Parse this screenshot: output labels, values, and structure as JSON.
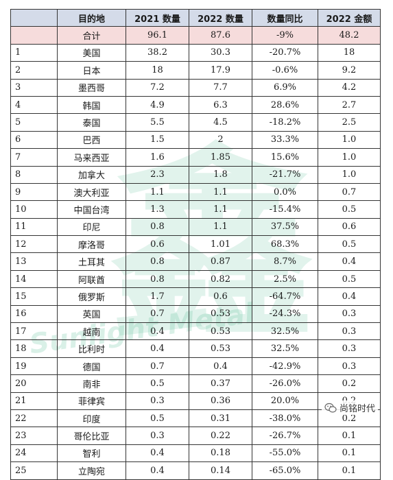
{
  "table": {
    "headers": [
      "",
      "目的地",
      "2021 数量",
      "2022 数量",
      "数量同比",
      "2022 金额"
    ],
    "total": [
      "",
      "合计",
      "96.1",
      "87.6",
      "-9%",
      "48.2"
    ],
    "rows": [
      [
        "1",
        "美国",
        "38.2",
        "30.3",
        "-20.7%",
        "18"
      ],
      [
        "2",
        "日本",
        "18",
        "17.9",
        "-0.6%",
        "9.2"
      ],
      [
        "3",
        "墨西哥",
        "7.2",
        "7.7",
        "6.9%",
        "4.2"
      ],
      [
        "4",
        "韩国",
        "4.9",
        "6.3",
        "28.6%",
        "2.7"
      ],
      [
        "5",
        "泰国",
        "5.5",
        "4.5",
        "-18.2%",
        "2.5"
      ],
      [
        "6",
        "巴西",
        "1.5",
        "2",
        "33.3%",
        "1.0"
      ],
      [
        "7",
        "马来西亚",
        "1.6",
        "1.85",
        "15.6%",
        "1.0"
      ],
      [
        "8",
        "加拿大",
        "2.3",
        "1.8",
        "-21.7%",
        "1.0"
      ],
      [
        "9",
        "澳大利亚",
        "1.1",
        "1.1",
        "0.0%",
        "0.7"
      ],
      [
        "10",
        "中国台湾",
        "1.3",
        "1.1",
        "-15.4%",
        "0.5"
      ],
      [
        "11",
        "印尼",
        "0.8",
        "1.1",
        "37.5%",
        "0.6"
      ],
      [
        "12",
        "摩洛哥",
        "0.6",
        "1.01",
        "68.3%",
        "0.5"
      ],
      [
        "13",
        "土耳其",
        "0.8",
        "0.87",
        "8.7%",
        "0.4"
      ],
      [
        "14",
        "阿联酋",
        "0.8",
        "0.82",
        "2.5%",
        "0.5"
      ],
      [
        "15",
        "俄罗斯",
        "1.7",
        "0.6",
        "-64.7%",
        "0.4"
      ],
      [
        "16",
        "英国",
        "0.7",
        "0.53",
        "-24.3%",
        "0.3"
      ],
      [
        "17",
        "越南",
        "0.4",
        "0.53",
        "32.5%",
        "0.3"
      ],
      [
        "18",
        "比利时",
        "0.4",
        "0.53",
        "32.5%",
        "0.3"
      ],
      [
        "19",
        "德国",
        "0.7",
        "0.4",
        "-42.9%",
        "0.3"
      ],
      [
        "20",
        "南非",
        "0.5",
        "0.37",
        "-26.0%",
        "0.2"
      ],
      [
        "21",
        "菲律宾",
        "0.3",
        "0.36",
        "20.0%",
        "0.2"
      ],
      [
        "22",
        "印度",
        "0.5",
        "0.31",
        "-38.0%",
        "0.2"
      ],
      [
        "23",
        "哥伦比亚",
        "0.3",
        "0.22",
        "-26.7%",
        "0.1"
      ],
      [
        "24",
        "智利",
        "0.4",
        "0.18",
        "-55.0%",
        "0.1"
      ],
      [
        "25",
        "立陶宛",
        "0.4",
        "0.14",
        "-65.0%",
        "0.1"
      ]
    ]
  },
  "watermark": {
    "text": "Sunlight Metal"
  },
  "footer": {
    "label": "尚铭时代",
    "icon": "wechat-icon"
  }
}
